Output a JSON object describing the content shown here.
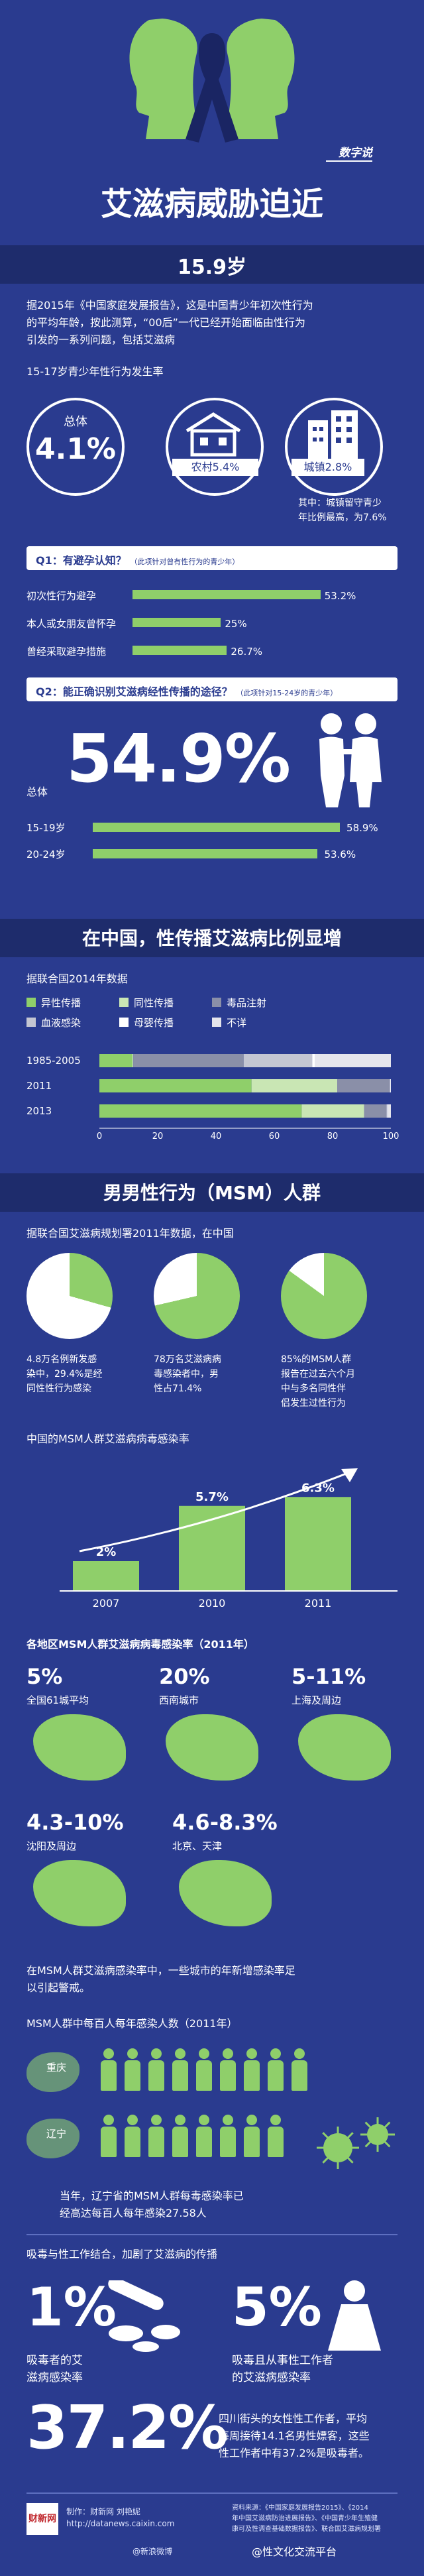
{
  "brand": {
    "logo_text": "数字说"
  },
  "title": "艾滋病威胁迫近",
  "sec1": {
    "header": "15.9岁",
    "intro": [
      "据2015年《中国家庭发展报告》，这是中国青少年初次性行为",
      "的平均年龄，按此测算，“00后”一代已经开始面临由性行为",
      "引发的一系列问题，包括艾滋病"
    ],
    "subtitle": "15-17岁青少年性行为发生率",
    "total_label": "总体",
    "total_value": "4.1%",
    "rural": "农村5.4%",
    "urban": "城镇2.8%",
    "note": [
      "其中：城镇留守青少",
      "年比例最高，为7.6%"
    ]
  },
  "q1": {
    "label": "Q1：有避孕认知？",
    "note": "（此项针对曾有性行为的青少年）",
    "items": [
      {
        "label": "初次性行为避孕",
        "value": "53.2%",
        "pct": 53.2
      },
      {
        "label": "本人或女朋友曾怀孕",
        "value": "25%",
        "pct": 25
      },
      {
        "label": "曾经采取避孕措施",
        "value": "26.7%",
        "pct": 26.7
      }
    ]
  },
  "q2": {
    "label": "Q2：能正确识别艾滋病经性传播的途径？",
    "note": "（此项针对15-24岁的青少年）",
    "big": "54.9%",
    "total_label": "总体",
    "items": [
      {
        "label": "15-19岁",
        "value": "58.9%",
        "pct": 58.9
      },
      {
        "label": "20-24岁",
        "value": "53.6%",
        "pct": 53.6
      }
    ]
  },
  "sec2": {
    "header": "在中国，性传播艾滋病比例显增",
    "source": "据联合国2014年数据",
    "legend": [
      "异性传播",
      "同性传播",
      "毒品注射",
      "血液感染",
      "母婴传播",
      "不详"
    ],
    "rows": [
      "1985-2005",
      "2011",
      "2013"
    ],
    "ticks": [
      "0",
      "20",
      "40",
      "60",
      "80",
      "100"
    ]
  },
  "chart_data": {
    "type": "bar",
    "orientation": "horizontal-stacked",
    "categories": [
      "1985-2005",
      "2011",
      "2013"
    ],
    "series": [
      {
        "name": "异性传播",
        "values": [
          11.3,
          52.2,
          69.4
        ]
      },
      {
        "name": "同性传播",
        "values": [
          0.3,
          29.4,
          21.4
        ]
      },
      {
        "name": "毒品注射",
        "values": [
          37.9,
          18.0,
          7.7
        ]
      },
      {
        "name": "血液感染",
        "values": [
          23.5,
          0.2,
          0.2
        ]
      },
      {
        "name": "母婴传播",
        "values": [
          1.0,
          0.2,
          0.2
        ]
      },
      {
        "name": "不详",
        "values": [
          26.0,
          0,
          1.1
        ]
      }
    ],
    "xlim": [
      0,
      100
    ],
    "colors": [
      "#8fcf6a",
      "#c9e6b4",
      "#8a8fa8",
      "#c4c6d2",
      "#ffffff",
      "#e5e5ec"
    ]
  },
  "sec3": {
    "header": "男男性行为（MSM）人群",
    "source": "据联合国艾滋病规划署2011年数据，在中国",
    "pies": [
      {
        "text": [
          "4.8万名例新发感",
          "染中，29.4%是经",
          "同性性行为感染"
        ],
        "pct": 29.4
      },
      {
        "text": [
          "78万名艾滋病病",
          "毒感染者中，男",
          "性占71.4%"
        ],
        "pct": 71.4
      },
      {
        "text": [
          "85%的MSM人群",
          "报告在过去六个月",
          "中与多名同性伴",
          "侣发生过性行为"
        ],
        "pct": 85
      }
    ],
    "rate_title": "中国的MSM人群艾滋病病毒感染率",
    "rates": [
      {
        "year": "2007",
        "value": "2%"
      },
      {
        "year": "2010",
        "value": "5.7%"
      },
      {
        "year": "2011",
        "value": "6.3%"
      }
    ],
    "region_title": "各地区MSM人群艾滋病病毒感染率（2011年）",
    "regions": [
      {
        "value": "5%",
        "label": "全国61城平均"
      },
      {
        "value": "20%",
        "label": "西南城市"
      },
      {
        "value": "5-11%",
        "label": "上海及周边"
      },
      {
        "value": "4.3-10%",
        "label": "沈阳及周边"
      },
      {
        "value": "4.6-8.3%",
        "label": "北京、天津"
      }
    ],
    "region_note": [
      "在MSM人群艾滋病感染率中，一些城市的年新增感染率足",
      "以引起警戒。"
    ],
    "per100_title": "MSM人群中每百人每年感染人数（2011年）",
    "cities": [
      "重庆",
      "辽宁"
    ],
    "liaoning_note": [
      "当年，辽宁省的MSM人群每毒感染率已",
      "经高达每百人每年感染27.58人"
    ]
  },
  "sec4": {
    "title": "吸毒与性工作结合，加剧了艾滋病的传播",
    "left_big": "1%",
    "left_text": [
      "吸毒者的艾",
      "滋病感染率"
    ],
    "right_big": "5%",
    "right_text": [
      "吸毒且从事性工作者",
      "的艾滋病感染率"
    ],
    "final_big": "37.2%",
    "final_text": [
      "四川街头的女性性工作者，平均",
      "每周接待14.1名男性嫖客，这些",
      "性工作者中有37.2%是吸毒者。"
    ]
  },
  "footer": {
    "credit": "制作：财新网 刘艳妮",
    "site": "http://datanews.caixin.com",
    "sources": [
      "资料来源：《中国家庭发展报告2015》、《2014",
      "年中国艾滋病防治进展报告》、《中国青少年生殖健",
      "康可及性调查基础数据报告》、联合国艾滋病规划署"
    ],
    "watermark": "@性文化交流平台",
    "watermark2": "@新浪微博"
  }
}
